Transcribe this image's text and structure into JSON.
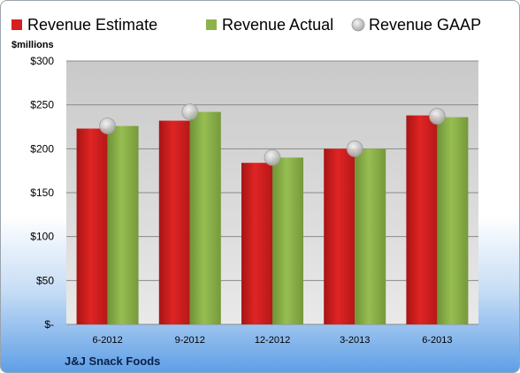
{
  "chart_data": {
    "type": "bar",
    "title": "",
    "ylabel": "$millions",
    "footer": "J&J Snack Foods",
    "categories": [
      "6-2012",
      "9-2012",
      "12-2012",
      "3-2013",
      "6-2013"
    ],
    "series": [
      {
        "name": "Revenue Estimate",
        "kind": "bar",
        "color": "#d61f1f",
        "values": [
          223,
          232,
          184,
          200,
          238
        ]
      },
      {
        "name": "Revenue Actual",
        "kind": "bar",
        "color": "#8db24a",
        "values": [
          226,
          242,
          190,
          200,
          236
        ]
      },
      {
        "name": "Revenue GAAP",
        "kind": "marker",
        "color": "#b9b9b9",
        "values": [
          226,
          242,
          190,
          200,
          237
        ]
      }
    ],
    "ylim": [
      0,
      300
    ],
    "yticks": [
      0,
      50,
      100,
      150,
      200,
      250,
      300
    ],
    "ytick_labels": [
      "$-",
      "$50",
      "$100",
      "$150",
      "$200",
      "$250",
      "$300"
    ],
    "grid": true,
    "legend_position": "top"
  }
}
